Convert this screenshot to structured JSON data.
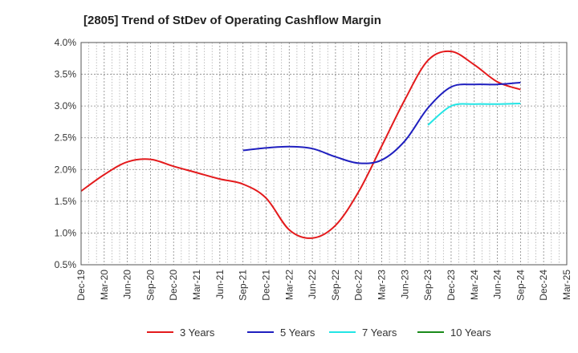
{
  "chart_data": {
    "type": "line",
    "title": "[2805]  Trend of StDev of Operating Cashflow Margin",
    "xlabel": "",
    "ylabel": "",
    "ylim": [
      0.5,
      4.0
    ],
    "y_ticks": [
      "0.5%",
      "1.0%",
      "1.5%",
      "2.0%",
      "2.5%",
      "3.0%",
      "3.5%",
      "4.0%"
    ],
    "categories": [
      "Dec-19",
      "Mar-20",
      "Jun-20",
      "Sep-20",
      "Dec-20",
      "Mar-21",
      "Jun-21",
      "Sep-21",
      "Dec-21",
      "Mar-22",
      "Jun-22",
      "Sep-22",
      "Dec-22",
      "Mar-23",
      "Jun-23",
      "Sep-23",
      "Dec-23",
      "Mar-24",
      "Jun-24",
      "Sep-24",
      "Dec-24",
      "Mar-25"
    ],
    "grid": true,
    "legend_position": "bottom",
    "series": [
      {
        "name": "3 Years",
        "color": "#e31a1c",
        "values": [
          1.66,
          1.92,
          2.12,
          2.16,
          2.05,
          1.95,
          1.85,
          1.77,
          1.55,
          1.05,
          0.92,
          1.12,
          1.65,
          2.37,
          3.1,
          3.72,
          3.86,
          3.65,
          3.38,
          3.26,
          null,
          null
        ]
      },
      {
        "name": "5 Years",
        "color": "#1f1fbf",
        "values": [
          null,
          null,
          null,
          null,
          null,
          null,
          null,
          2.3,
          2.34,
          2.36,
          2.33,
          2.2,
          2.1,
          2.15,
          2.45,
          2.97,
          3.3,
          3.34,
          3.34,
          3.37,
          null,
          null
        ]
      },
      {
        "name": "7 Years",
        "color": "#22e5e5",
        "values": [
          null,
          null,
          null,
          null,
          null,
          null,
          null,
          null,
          null,
          null,
          null,
          null,
          null,
          null,
          null,
          2.7,
          3.0,
          3.03,
          3.03,
          3.04,
          null,
          null
        ]
      },
      {
        "name": "10 Years",
        "color": "#1a8a1a",
        "values": [
          null,
          null,
          null,
          null,
          null,
          null,
          null,
          null,
          null,
          null,
          null,
          null,
          null,
          null,
          null,
          null,
          null,
          null,
          null,
          null,
          null,
          null
        ]
      }
    ]
  }
}
